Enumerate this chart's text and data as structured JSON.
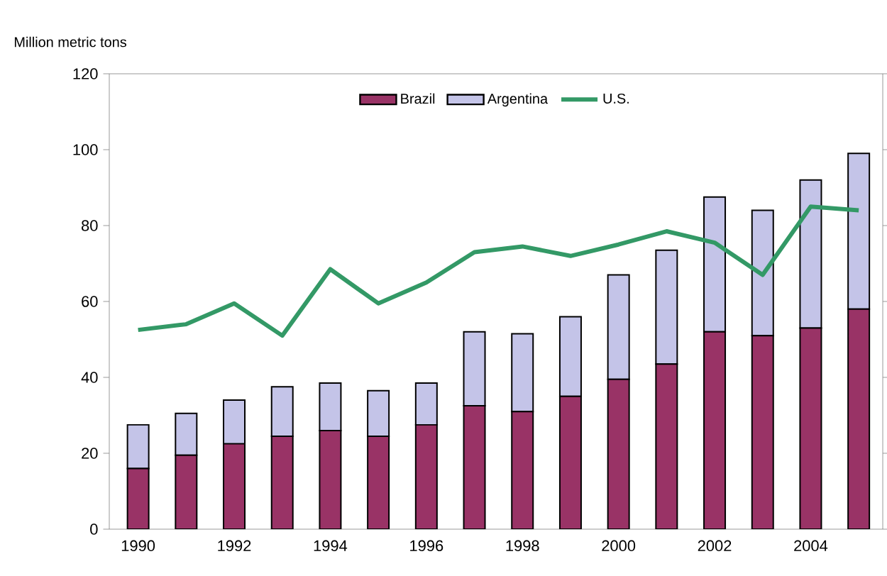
{
  "chart_data": {
    "type": "bar",
    "ylabel": "Million metric tons",
    "stacked": true,
    "legend": "top",
    "categories": [
      "1990",
      null,
      "1992",
      null,
      "1994",
      null,
      "1996",
      null,
      "1998",
      null,
      "2000",
      null,
      "2002",
      null,
      "2004",
      null
    ],
    "series": [
      {
        "name": "Brazil",
        "type": "bar",
        "color": "#993366",
        "values": [
          16,
          19.5,
          22.5,
          24.5,
          26,
          24.5,
          27.5,
          32.5,
          31,
          35,
          39.5,
          43.5,
          52,
          51,
          53,
          58
        ]
      },
      {
        "name": "Argentina",
        "type": "bar",
        "color": "#c4c4e8",
        "values": [
          11.5,
          11,
          11.5,
          13,
          12.5,
          12,
          11,
          19.5,
          20.5,
          21,
          27.5,
          30,
          35.5,
          33,
          39,
          41
        ]
      },
      {
        "name": "U.S.",
        "type": "line",
        "color": "#339966",
        "values": [
          52.5,
          54,
          59.5,
          51,
          68.5,
          59.5,
          65,
          73,
          74.5,
          72,
          75,
          78.5,
          75.5,
          67,
          85,
          84
        ]
      }
    ],
    "ylim": [
      0,
      120
    ],
    "yticks": [
      0,
      20,
      40,
      60,
      80,
      100,
      120
    ]
  }
}
